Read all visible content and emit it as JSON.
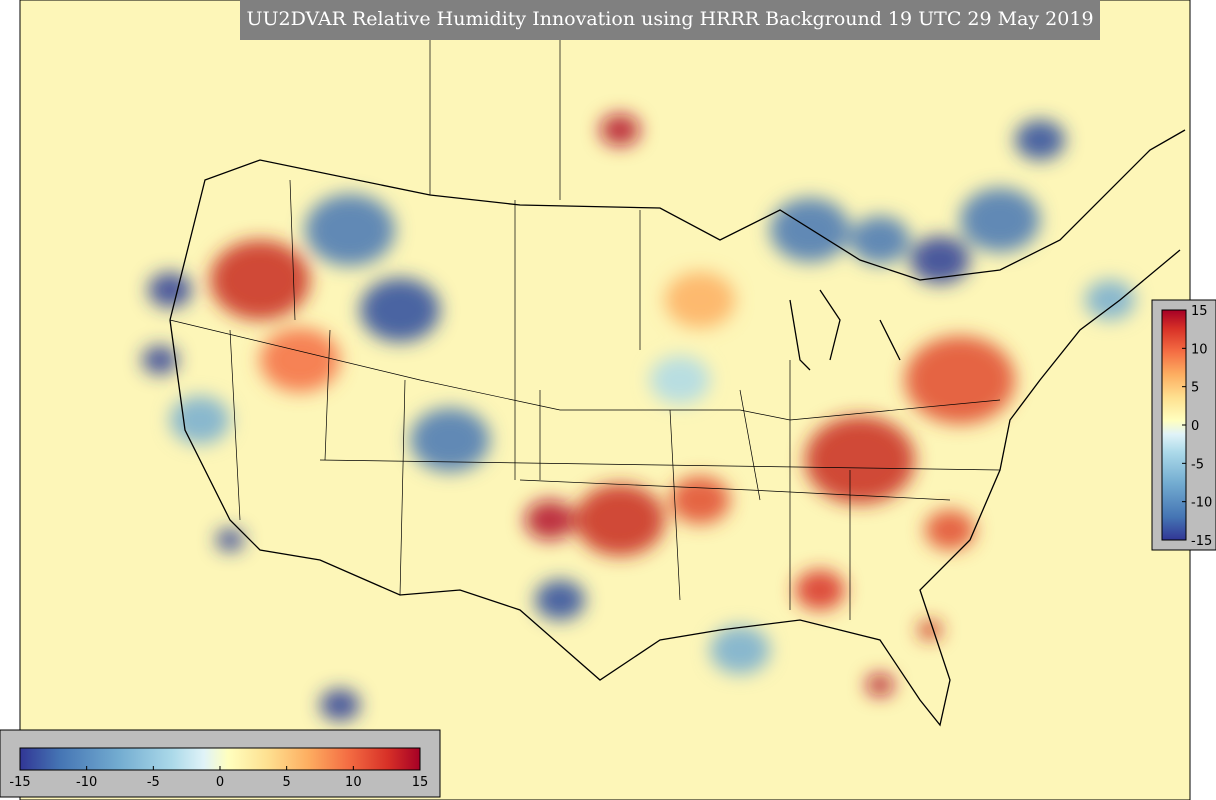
{
  "title": "UU2DVAR Relative Humidity Innovation using HRRR Background 19 UTC 29 May 2019",
  "colorbars": [
    {
      "orientation": "horizontal",
      "lim": [
        -15,
        15
      ],
      "ticks": [
        -15,
        -10,
        -5,
        0,
        5,
        10,
        15
      ]
    },
    {
      "orientation": "vertical",
      "lim": [
        -15,
        15
      ],
      "ticks": [
        15,
        10,
        5,
        0,
        -5,
        -10,
        -15
      ]
    }
  ]
}
